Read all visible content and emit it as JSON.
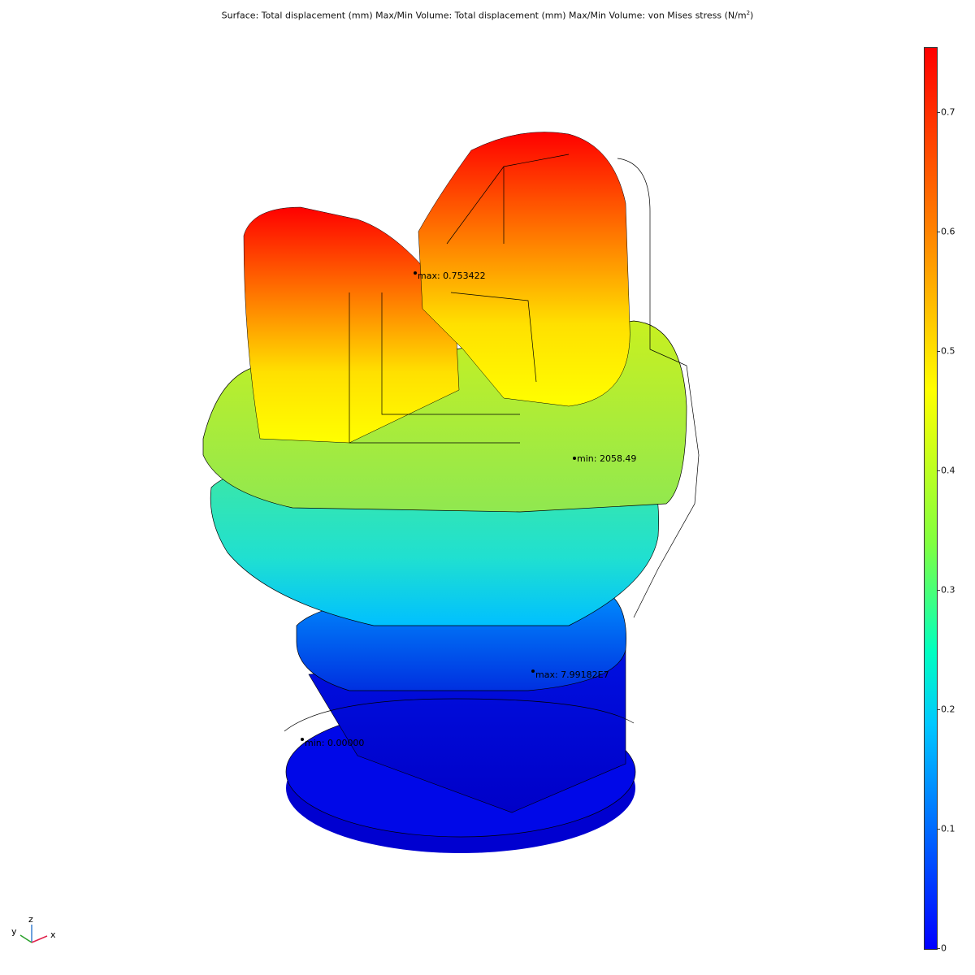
{
  "title": {
    "prefix": "Surface: Total displacement (mm)  Max/Min Volume: Total displacement (mm)  Max/Min Volume: von Mises stress (N/m",
    "sup": "2",
    "suffix": ")"
  },
  "annotations": {
    "max_displacement": "max: 0.753422",
    "min_stress": "min: 2058.49",
    "max_stress": "max: 7.99182E7",
    "min_displacement": "min: 0.00000"
  },
  "colorbar": {
    "range": [
      0,
      0.753422
    ],
    "ticks": [
      "0",
      "0.1",
      "0.2",
      "0.3",
      "0.4",
      "0.5",
      "0.6",
      "0.7"
    ],
    "colormap": "rainbow",
    "colors": {
      "low": "#0000ff",
      "mid": "#ffff00",
      "high": "#ff0000"
    }
  },
  "axes_triad": {
    "x": "x",
    "y": "y",
    "z": "z",
    "colors": {
      "x": "#e0204a",
      "y": "#2aa02a",
      "z": "#3a80d0"
    }
  }
}
